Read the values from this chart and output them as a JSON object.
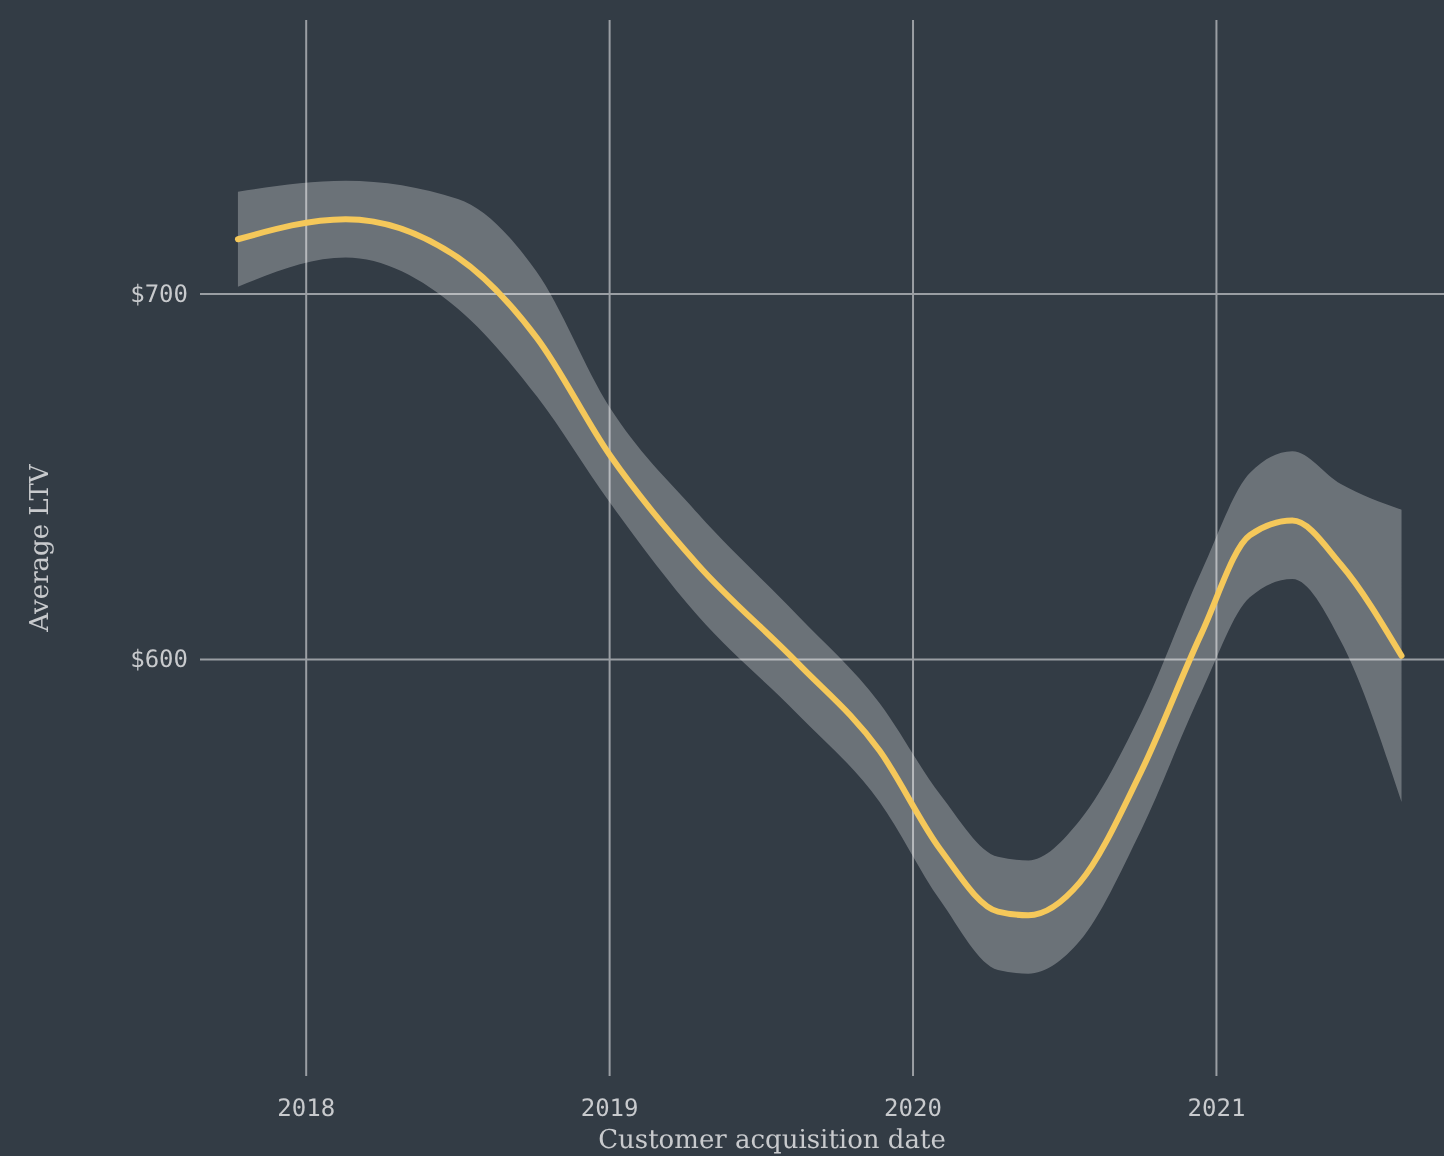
{
  "chart_data": {
    "type": "line",
    "xlabel": "Customer acquisition date",
    "ylabel": "Average LTV",
    "xlim": [
      2017.65,
      2021.75
    ],
    "ylim": [
      486,
      775
    ],
    "xticks": [
      2018,
      2019,
      2020,
      2021
    ],
    "yticks": [
      {
        "value": 600,
        "label": "$600"
      },
      {
        "value": 700,
        "label": "$700"
      }
    ],
    "grid": true,
    "marker": "none",
    "line_style": "solid",
    "series": [
      {
        "color": "#f5c85a",
        "x": [
          2017.775,
          2018.13,
          2018.5,
          2018.76,
          2019.0,
          2019.29,
          2019.62,
          2019.89,
          2020.09,
          2020.28,
          2020.38,
          2020.55,
          2020.75,
          2020.95,
          2021.11,
          2021.25,
          2021.41,
          2021.61
        ],
        "values": [
          715,
          720.5,
          710,
          688,
          656,
          626,
          599,
          575,
          548,
          531,
          530,
          539,
          569,
          607,
          634,
          638,
          626,
          601
        ],
        "upper": [
          728,
          731,
          726,
          706,
          669,
          640,
          612,
          588,
          563,
          546,
          545,
          556,
          585,
          624,
          651,
          657,
          648,
          641
        ],
        "lower": [
          702,
          710,
          696,
          672,
          643,
          612,
          585,
          561,
          534,
          515,
          514,
          523,
          553,
          591,
          617,
          622,
          605,
          561
        ]
      }
    ]
  }
}
